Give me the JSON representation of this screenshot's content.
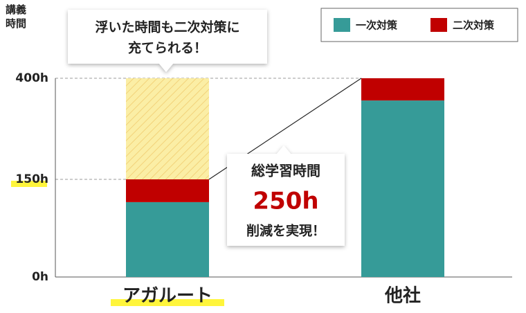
{
  "chart_data": {
    "type": "stacked-bar",
    "y_label": "講義時間",
    "categories": [
      "アガルート",
      "他社"
    ],
    "series": [
      {
        "name": "一次対策",
        "color": "#369b98",
        "values": [
          115,
          345
        ]
      },
      {
        "name": "二次対策",
        "color": "#c00000",
        "values": [
          35,
          55
        ]
      }
    ],
    "ylim": [
      0,
      400
    ],
    "yticks": [
      {
        "value": 0,
        "label": "0h"
      },
      {
        "value": 150,
        "label": "150h"
      },
      {
        "value": 400,
        "label": "400h"
      }
    ],
    "annotations": {
      "top": [
        "浮いた時間も二次対策に",
        "充てられる！"
      ],
      "middle": [
        "総学習時間",
        "250h",
        "削減を実現！"
      ]
    }
  }
}
